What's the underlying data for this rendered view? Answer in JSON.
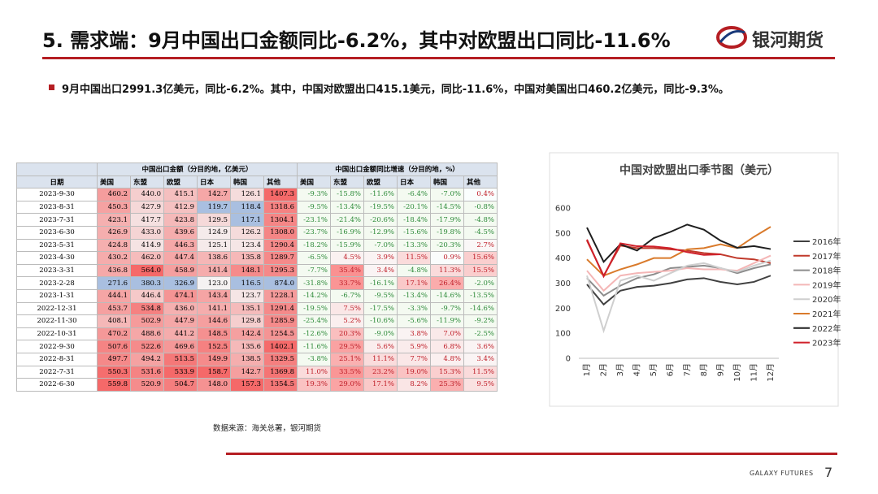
{
  "header": {
    "title": "5. 需求端：9月中国出口金额同比-6.2%，其中对欧盟出口同比-11.6%",
    "logo": "银河期货"
  },
  "bullet": "9月中国出口2991.3亿美元，同比-6.2%。其中，中国对欧盟出口415.1美元，同比-11.6%，中国对美国出口460.2亿美元，同比-9.3%。",
  "table": {
    "group_headers": [
      "中国出口金额（分目的地，亿美元）",
      "中国出口金额同比增速（分目的地，%）"
    ],
    "columns": [
      "日期",
      "美国",
      "东盟",
      "欧盟",
      "日本",
      "韩国",
      "其他",
      "美国",
      "东盟",
      "欧盟",
      "日本",
      "韩国",
      "其他"
    ],
    "rows": [
      [
        "2023-9-30",
        "460.2",
        "440.0",
        "415.1",
        "142.7",
        "126.1",
        "1407.3",
        "-9.3%",
        "-15.8%",
        "-11.6%",
        "-6.4%",
        "-7.0%",
        "0.4%"
      ],
      [
        "2023-8-31",
        "450.3",
        "427.9",
        "412.9",
        "119.7",
        "118.4",
        "1318.6",
        "-9.5%",
        "-13.4%",
        "-19.5%",
        "-20.1%",
        "-14.5%",
        "-0.8%"
      ],
      [
        "2023-7-31",
        "423.1",
        "417.7",
        "423.8",
        "129.5",
        "117.1",
        "1304.1",
        "-23.1%",
        "-21.4%",
        "-20.6%",
        "-18.4%",
        "-17.9%",
        "-4.8%"
      ],
      [
        "2023-6-30",
        "426.9",
        "433.0",
        "439.6",
        "124.9",
        "126.2",
        "1308.0",
        "-23.7%",
        "-16.9%",
        "-12.9%",
        "-15.6%",
        "-19.8%",
        "-4.5%"
      ],
      [
        "2023-5-31",
        "424.8",
        "414.9",
        "446.3",
        "125.1",
        "123.4",
        "1290.4",
        "-18.2%",
        "-15.9%",
        "-7.0%",
        "-13.3%",
        "-20.3%",
        "2.7%"
      ],
      [
        "2023-4-30",
        "430.2",
        "462.0",
        "447.4",
        "138.6",
        "135.8",
        "1289.7",
        "-6.5%",
        "4.5%",
        "3.9%",
        "11.5%",
        "0.9%",
        "15.6%"
      ],
      [
        "2023-3-31",
        "436.8",
        "564.0",
        "458.9",
        "141.4",
        "148.1",
        "1295.3",
        "-7.7%",
        "35.4%",
        "3.4%",
        "-4.8%",
        "11.3%",
        "15.5%"
      ],
      [
        "2023-2-28",
        "271.6",
        "380.3",
        "326.9",
        "123.0",
        "116.5",
        "874.0",
        "-31.8%",
        "33.7%",
        "-16.1%",
        "17.1%",
        "26.4%",
        "-2.0%"
      ],
      [
        "2023-1-31",
        "444.1",
        "446.4",
        "474.1",
        "143.4",
        "123.7",
        "1228.1",
        "-14.2%",
        "-6.7%",
        "-9.5%",
        "-13.4%",
        "-14.6%",
        "-13.5%"
      ],
      [
        "2022-12-31",
        "453.7",
        "534.8",
        "436.0",
        "141.1",
        "135.1",
        "1291.4",
        "-19.5%",
        "7.5%",
        "-17.5%",
        "-3.3%",
        "-9.7%",
        "-14.6%"
      ],
      [
        "2022-11-30",
        "408.1",
        "502.9",
        "447.9",
        "144.6",
        "129.8",
        "1285.9",
        "-25.4%",
        "5.2%",
        "-10.6%",
        "-5.6%",
        "-11.9%",
        "-9.2%"
      ],
      [
        "2022-10-31",
        "470.2",
        "488.6",
        "441.2",
        "148.5",
        "142.4",
        "1254.5",
        "-12.6%",
        "20.3%",
        "-9.0%",
        "3.8%",
        "7.0%",
        "-2.5%"
      ],
      [
        "2022-9-30",
        "507.6",
        "522.6",
        "469.6",
        "152.5",
        "135.6",
        "1402.1",
        "-11.6%",
        "29.5%",
        "5.6%",
        "5.9%",
        "6.8%",
        "3.6%"
      ],
      [
        "2022-8-31",
        "497.7",
        "494.2",
        "513.5",
        "149.9",
        "138.5",
        "1329.5",
        "-3.8%",
        "25.1%",
        "11.1%",
        "7.7%",
        "4.8%",
        "3.4%"
      ],
      [
        "2022-7-31",
        "550.3",
        "531.6",
        "533.9",
        "158.7",
        "142.7",
        "1369.8",
        "11.0%",
        "33.5%",
        "23.2%",
        "19.0%",
        "15.3%",
        "11.5%"
      ],
      [
        "2022-6-30",
        "559.8",
        "520.9",
        "504.7",
        "148.0",
        "157.3",
        "1354.5",
        "19.3%",
        "29.0%",
        "17.1%",
        "8.2%",
        "25.3%",
        "9.5%"
      ]
    ]
  },
  "chart_data": {
    "type": "line",
    "title": "中国对欧盟出口季节图（美元）",
    "categories": [
      "1月",
      "2月",
      "3月",
      "4月",
      "5月",
      "6月",
      "7月",
      "8月",
      "9月",
      "10月",
      "11月",
      "12月"
    ],
    "ylim": [
      0,
      600
    ],
    "yticks": [
      0,
      100,
      200,
      300,
      400,
      500,
      600
    ],
    "legend": "right",
    "series": [
      {
        "name": "2016年",
        "color": "#404040",
        "values": [
          295,
          215,
          270,
          285,
          290,
          300,
          315,
          320,
          305,
          295,
          305,
          330
        ]
      },
      {
        "name": "2017年",
        "color": "#c0392b",
        "values": [
          470,
          330,
          450,
          440,
          440,
          435,
          430,
          420,
          415,
          400,
          395,
          380
        ]
      },
      {
        "name": "2018年",
        "color": "#8c8c8c",
        "values": [
          320,
          250,
          290,
          320,
          335,
          360,
          365,
          370,
          360,
          340,
          360,
          375
        ]
      },
      {
        "name": "2019年",
        "color": "#f4b6b6",
        "values": [
          350,
          270,
          330,
          340,
          345,
          350,
          360,
          355,
          355,
          350,
          380,
          410
        ]
      },
      {
        "name": "2020年",
        "color": "#cfcfcf",
        "values": [
          330,
          110,
          310,
          330,
          310,
          340,
          370,
          380,
          360,
          345,
          370,
          390
        ]
      },
      {
        "name": "2021年",
        "color": "#d97a2b",
        "values": [
          395,
          330,
          355,
          375,
          400,
          400,
          435,
          440,
          455,
          440,
          485,
          525
        ]
      },
      {
        "name": "2022年",
        "color": "#1f1f1f",
        "values": [
          522,
          385,
          455,
          430,
          480,
          504.7,
          533.9,
          513.5,
          469.6,
          441.2,
          447.9,
          436.0
        ]
      },
      {
        "name": "2023年",
        "color": "#d0202a",
        "values": [
          474.1,
          326.9,
          458.9,
          447.4,
          446.3,
          439.6,
          423.8,
          412.9,
          415.1,
          null,
          null,
          null
        ]
      }
    ]
  },
  "source": "数据来源：海关总署，银河期货",
  "footer": {
    "brand": "GALAXY FUTURES",
    "page": "7"
  }
}
